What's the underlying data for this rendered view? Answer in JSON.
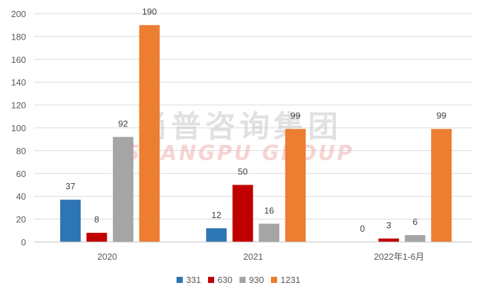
{
  "watermark": {
    "cn": "尚普咨询集团",
    "en": "SHANGPU GROUP"
  },
  "chart_data": {
    "type": "bar",
    "categories": [
      "2020",
      "2021",
      "2022年1-6月"
    ],
    "series": [
      {
        "name": "331",
        "values": [
          37,
          12,
          0
        ],
        "color": "#2e75b6"
      },
      {
        "name": "630",
        "values": [
          8,
          50,
          3
        ],
        "color": "#c00000"
      },
      {
        "name": "930",
        "values": [
          92,
          16,
          6
        ],
        "color": "#a5a5a5"
      },
      {
        "name": "1231",
        "values": [
          190,
          99,
          99
        ],
        "color": "#ed7d31"
      }
    ],
    "ylim": [
      0,
      200
    ],
    "yticks": [
      0,
      20,
      40,
      60,
      80,
      100,
      120,
      140,
      160,
      180,
      200
    ],
    "grid": true,
    "legend": "bottom"
  }
}
